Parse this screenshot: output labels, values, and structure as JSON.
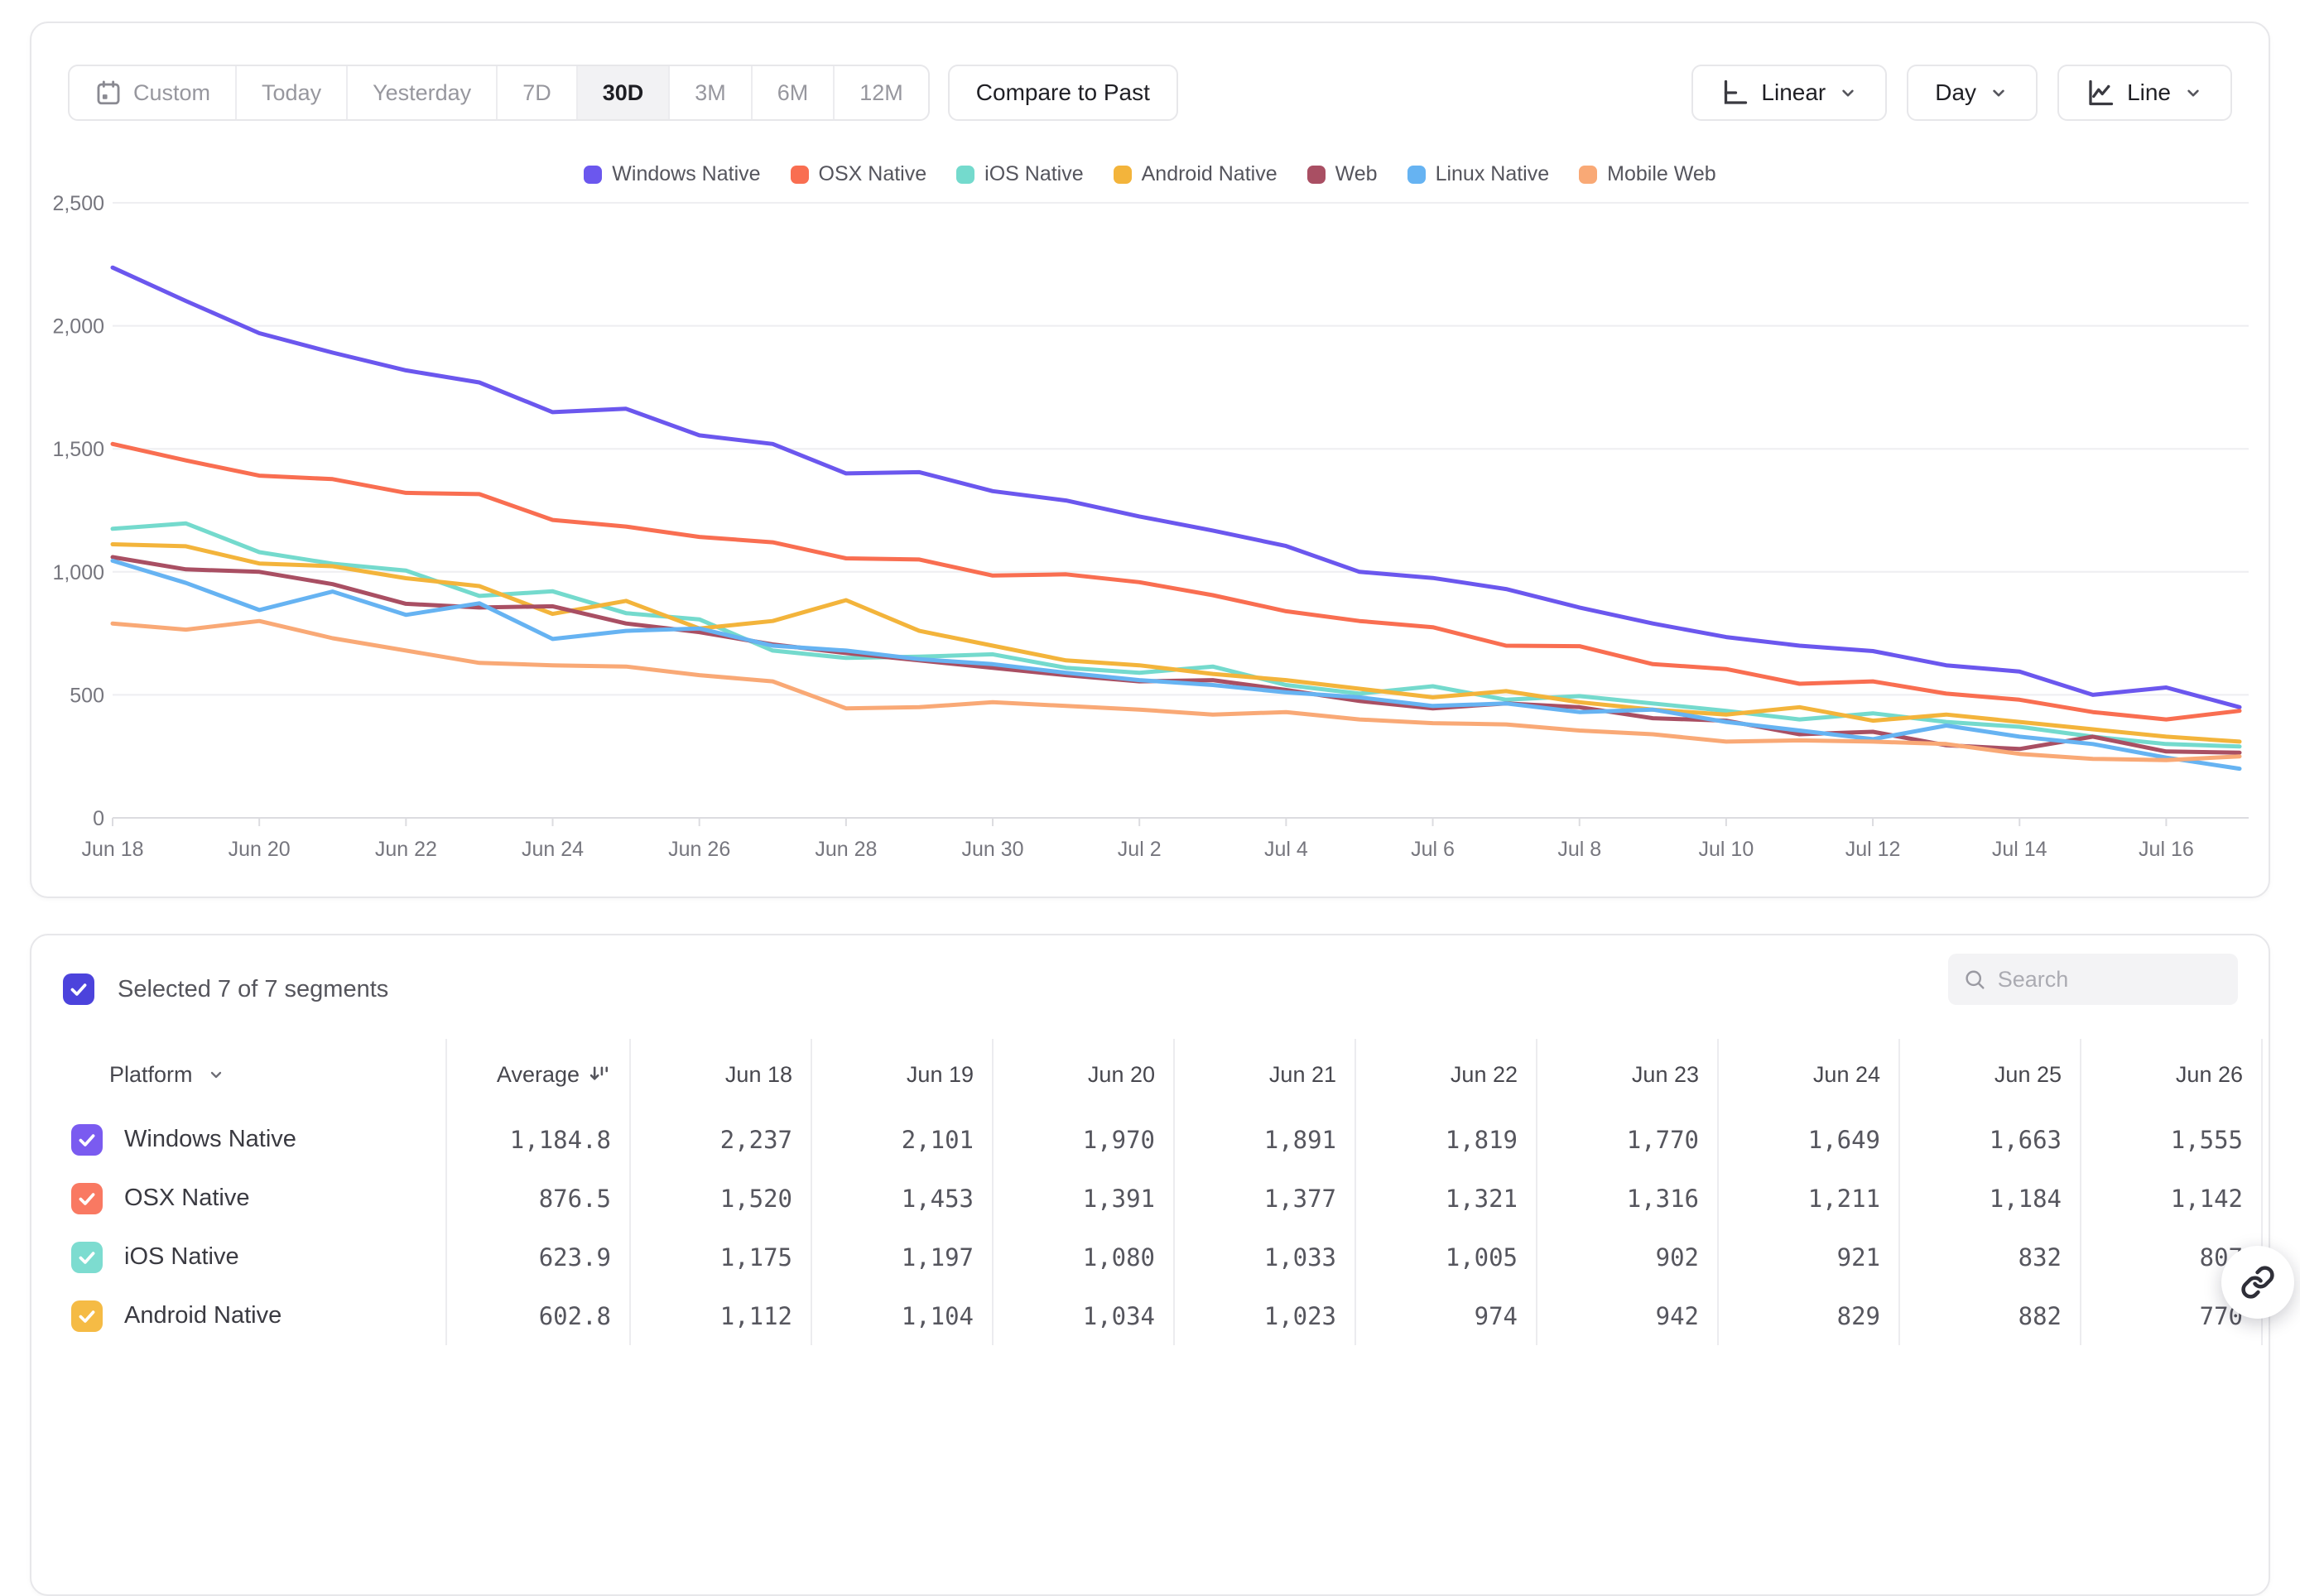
{
  "toolbar": {
    "range_items": [
      {
        "label": "Custom",
        "icon": "calendar-icon",
        "active": false
      },
      {
        "label": "Today",
        "active": false
      },
      {
        "label": "Yesterday",
        "active": false
      },
      {
        "label": "7D",
        "active": false
      },
      {
        "label": "30D",
        "active": true
      },
      {
        "label": "3M",
        "active": false
      },
      {
        "label": "6M",
        "active": false
      },
      {
        "label": "12M",
        "active": false
      }
    ],
    "compare_label": "Compare to Past",
    "scale_dropdown": {
      "label": "Linear",
      "icon": "axis-scale-icon"
    },
    "interval_dropdown": {
      "label": "Day"
    },
    "chart_type_dropdown": {
      "label": "Line",
      "icon": "line-chart-icon"
    }
  },
  "chart_data": {
    "type": "line",
    "title": "",
    "xlabel": "",
    "ylabel": "",
    "ylim": [
      0,
      2500
    ],
    "grid": true,
    "legend_position": "top",
    "yticks": [
      0,
      500,
      1000,
      1500,
      2000,
      2500
    ],
    "ytick_labels": [
      "0",
      "500",
      "1,000",
      "1,500",
      "2,000",
      "2,500"
    ],
    "x": [
      "Jun 18",
      "Jun 19",
      "Jun 20",
      "Jun 21",
      "Jun 22",
      "Jun 23",
      "Jun 24",
      "Jun 25",
      "Jun 26",
      "Jun 27",
      "Jun 28",
      "Jun 29",
      "Jun 30",
      "Jul 1",
      "Jul 2",
      "Jul 3",
      "Jul 4",
      "Jul 5",
      "Jul 6",
      "Jul 7",
      "Jul 8",
      "Jul 9",
      "Jul 10",
      "Jul 11",
      "Jul 12",
      "Jul 13",
      "Jul 14",
      "Jul 15",
      "Jul 16",
      "Jul 17"
    ],
    "x_tick_every": 2,
    "series": [
      {
        "name": "Windows Native",
        "color": "#6B57EE",
        "values": [
          2237,
          2101,
          1970,
          1891,
          1819,
          1770,
          1649,
          1663,
          1555,
          1520,
          1400,
          1405,
          1328,
          1290,
          1225,
          1168,
          1105,
          1000,
          975,
          930,
          855,
          790,
          735,
          700,
          678,
          620,
          595,
          500,
          530,
          450
        ]
      },
      {
        "name": "OSX Native",
        "color": "#F96E51",
        "values": [
          1520,
          1453,
          1391,
          1377,
          1321,
          1316,
          1211,
          1184,
          1142,
          1120,
          1055,
          1050,
          985,
          990,
          958,
          905,
          840,
          800,
          775,
          700,
          698,
          625,
          605,
          545,
          555,
          505,
          480,
          430,
          400,
          435
        ]
      },
      {
        "name": "iOS Native",
        "color": "#74DACD",
        "values": [
          1175,
          1197,
          1080,
          1033,
          1005,
          902,
          921,
          832,
          807,
          680,
          650,
          655,
          665,
          610,
          590,
          615,
          540,
          505,
          535,
          480,
          495,
          465,
          435,
          400,
          425,
          390,
          370,
          330,
          300,
          290
        ]
      },
      {
        "name": "Android Native",
        "color": "#F3B43B",
        "values": [
          1112,
          1104,
          1034,
          1023,
          974,
          942,
          829,
          882,
          770,
          800,
          885,
          760,
          700,
          640,
          620,
          585,
          560,
          525,
          490,
          515,
          470,
          440,
          420,
          450,
          395,
          420,
          390,
          360,
          330,
          310
        ]
      },
      {
        "name": "Web",
        "color": "#A94F63",
        "values": [
          1060,
          1010,
          1000,
          950,
          870,
          855,
          860,
          790,
          755,
          705,
          670,
          640,
          610,
          580,
          555,
          560,
          520,
          475,
          445,
          465,
          450,
          405,
          395,
          340,
          350,
          295,
          280,
          330,
          270,
          265
        ]
      },
      {
        "name": "Linux Native",
        "color": "#66B3F2",
        "values": [
          1045,
          955,
          845,
          920,
          825,
          872,
          727,
          760,
          770,
          700,
          680,
          645,
          625,
          590,
          560,
          540,
          510,
          490,
          455,
          465,
          430,
          440,
          390,
          355,
          320,
          375,
          330,
          300,
          245,
          200
        ]
      },
      {
        "name": "Mobile Web",
        "color": "#F9A976",
        "values": [
          790,
          765,
          800,
          730,
          680,
          630,
          620,
          615,
          580,
          555,
          445,
          450,
          470,
          455,
          440,
          420,
          430,
          400,
          385,
          380,
          355,
          340,
          310,
          315,
          310,
          300,
          260,
          240,
          235,
          250
        ]
      }
    ]
  },
  "segments_panel": {
    "selectall_color": "#4C43DC",
    "selected_summary": "Selected 7 of 7 segments",
    "search_placeholder": "Search",
    "table": {
      "columns": [
        "Platform",
        "Average",
        "Jun 18",
        "Jun 19",
        "Jun 20",
        "Jun 21",
        "Jun 22",
        "Jun 23",
        "Jun 24",
        "Jun 25",
        "Jun 26"
      ],
      "rows": [
        {
          "platform": "Windows Native",
          "checkbox_color": "#7A5BF0",
          "checked": true,
          "average": "1,184.8",
          "values": [
            "2,237",
            "2,101",
            "1,970",
            "1,891",
            "1,819",
            "1,770",
            "1,649",
            "1,663",
            "1,555"
          ]
        },
        {
          "platform": "OSX Native",
          "checkbox_color": "#F97962",
          "checked": true,
          "average": "876.5",
          "values": [
            "1,520",
            "1,453",
            "1,391",
            "1,377",
            "1,321",
            "1,316",
            "1,211",
            "1,184",
            "1,142"
          ]
        },
        {
          "platform": "iOS Native",
          "checkbox_color": "#7DDCD0",
          "checked": true,
          "average": "623.9",
          "values": [
            "1,175",
            "1,197",
            "1,080",
            "1,033",
            "1,005",
            "902",
            "921",
            "832",
            "807"
          ]
        },
        {
          "platform": "Android Native",
          "checkbox_color": "#F5BB45",
          "checked": true,
          "average": "602.8",
          "values": [
            "1,112",
            "1,104",
            "1,034",
            "1,023",
            "974",
            "942",
            "829",
            "882",
            "770"
          ]
        }
      ]
    }
  },
  "fab": {
    "icon": "link-icon"
  }
}
